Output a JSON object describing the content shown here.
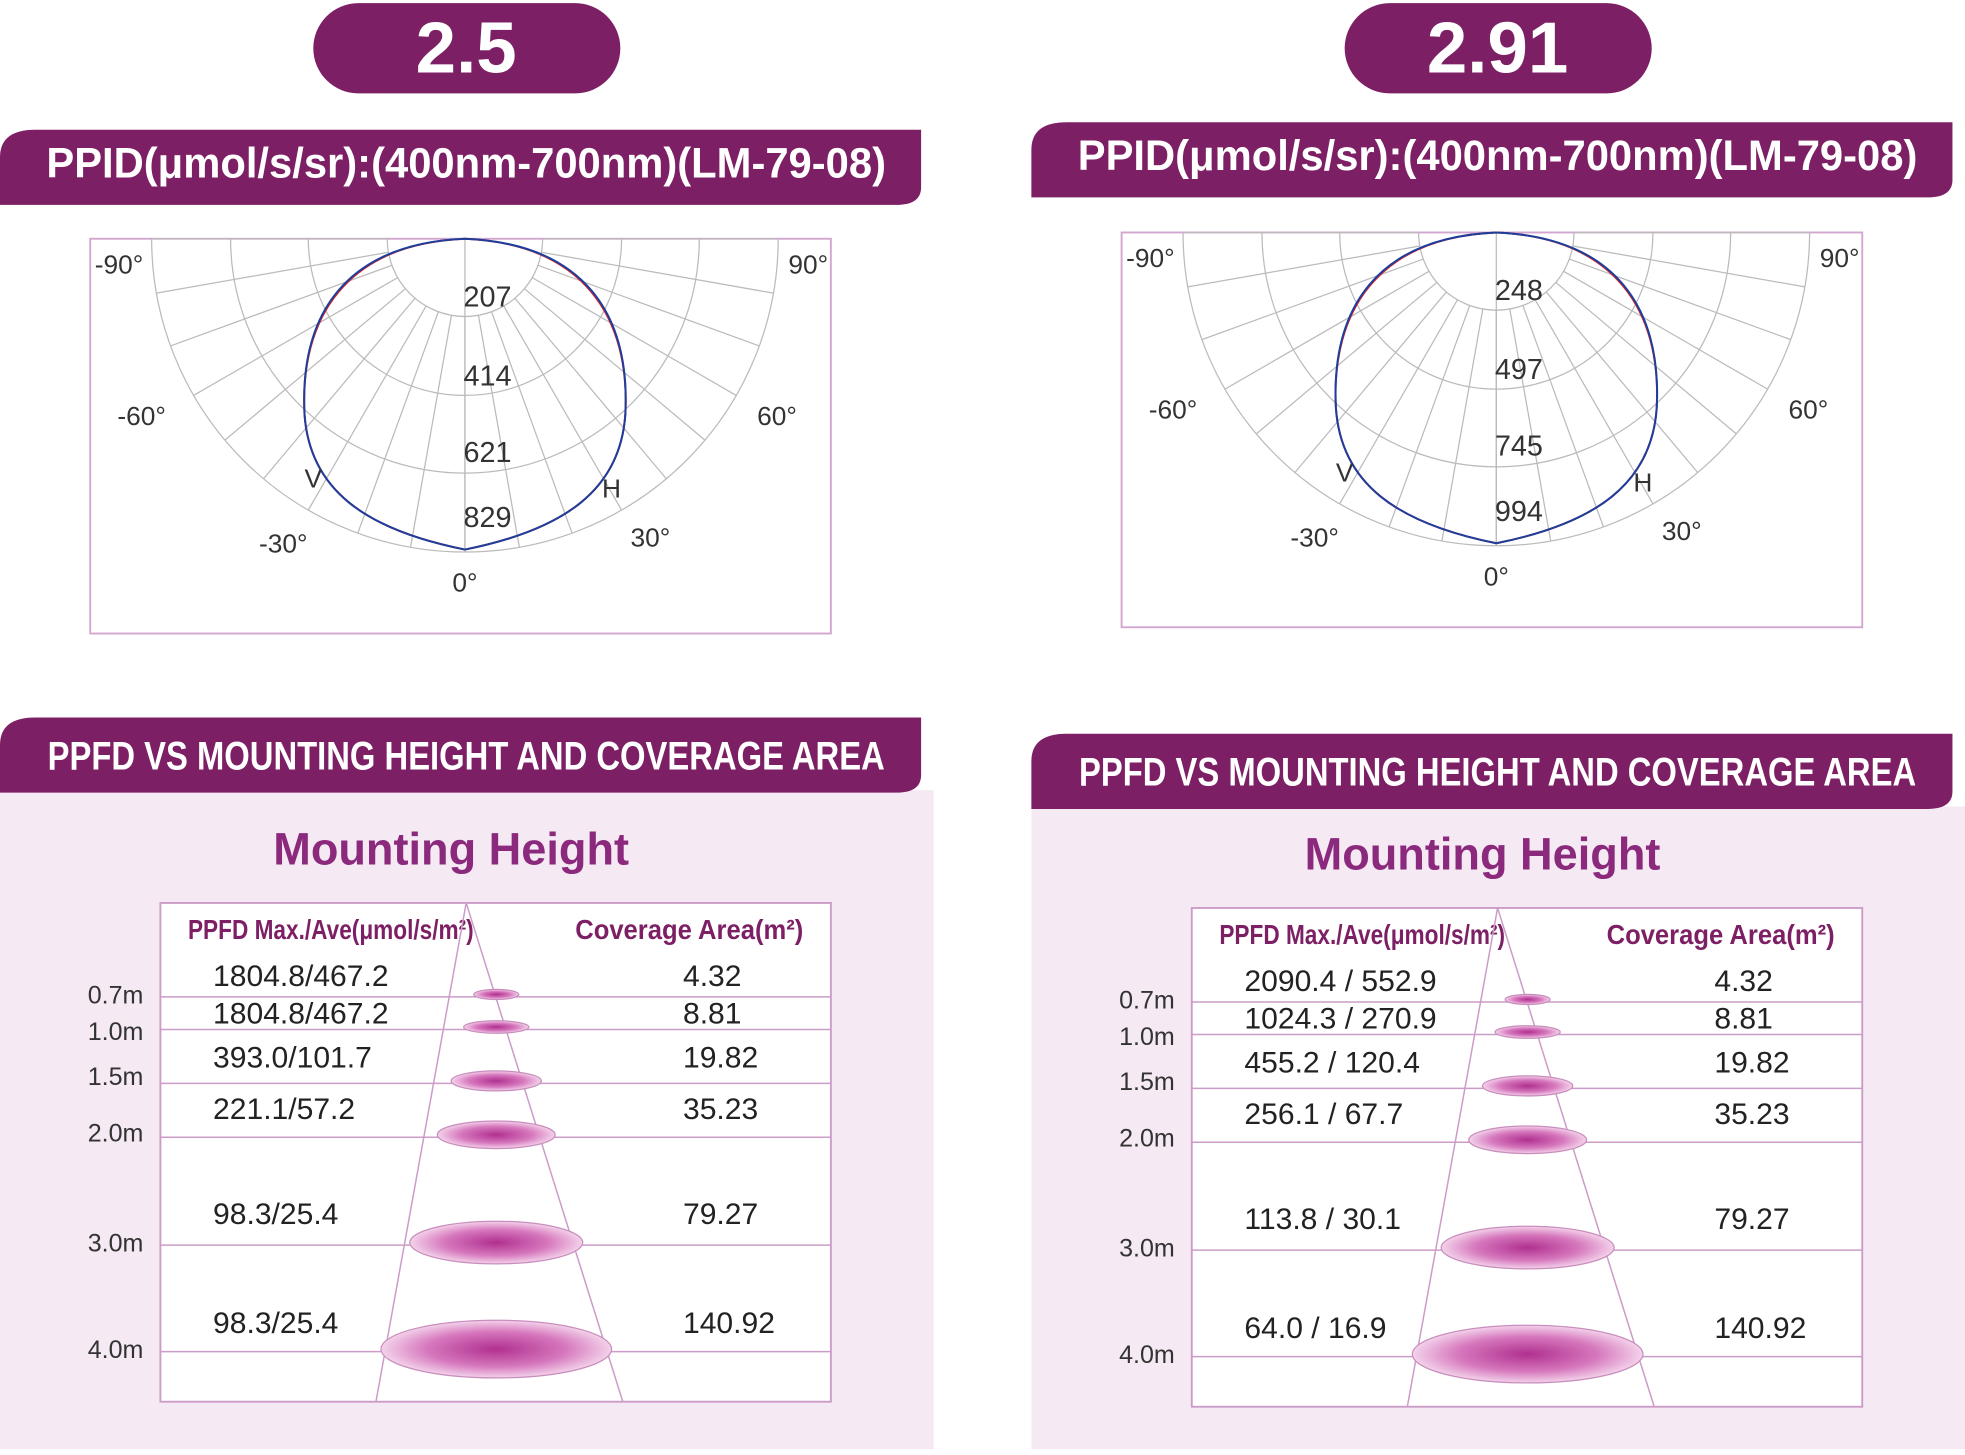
{
  "panels": [
    {
      "badge": "2.5",
      "ppid_title": "PPID(μmol/s/sr):(400nm-700nm)(LM-79-08)",
      "polar": {
        "angle_labels": [
          "-90°",
          "90°",
          "-60°",
          "60°",
          "-30°",
          "30°",
          "0°"
        ],
        "radial_labels": [
          "207",
          "414",
          "621",
          "829"
        ],
        "curve_labels": [
          "V",
          "H"
        ]
      },
      "ppfd_title": "PPFD VS MOUNTING HEIGHT AND COVERAGE AREA",
      "mounting_title": "Mounting Height",
      "table": {
        "header": [
          "PPFD Max./Ave(μmol/s/m²)",
          "Coverage Area(m²)"
        ],
        "rows": [
          {
            "height": "0.7m",
            "ppfd": "1804.8/467.2",
            "area": "4.32"
          },
          {
            "height": "1.0m",
            "ppfd": "1804.8/467.2",
            "area": "8.81"
          },
          {
            "height": "1.5m",
            "ppfd": "393.0/101.7",
            "area": "19.82"
          },
          {
            "height": "2.0m",
            "ppfd": "221.1/57.2",
            "area": "35.23"
          },
          {
            "height": "3.0m",
            "ppfd": "98.3/25.4",
            "area": "79.27"
          },
          {
            "height": "4.0m",
            "ppfd": "98.3/25.4",
            "area": "140.92"
          }
        ]
      }
    },
    {
      "badge": "2.91",
      "ppid_title": "PPID(μmol/s/sr):(400nm-700nm)(LM-79-08)",
      "polar": {
        "angle_labels": [
          "-90°",
          "90°",
          "-60°",
          "60°",
          "-30°",
          "30°",
          "0°"
        ],
        "radial_labels": [
          "248",
          "497",
          "745",
          "994"
        ],
        "curve_labels": [
          "V",
          "H"
        ]
      },
      "ppfd_title": "PPFD VS MOUNTING HEIGHT AND COVERAGE AREA",
      "mounting_title": "Mounting Height",
      "table": {
        "header": [
          "PPFD Max./Ave(μmol/s/m²)",
          "Coverage Area(m²)"
        ],
        "rows": [
          {
            "height": "0.7m",
            "ppfd": "2090.4 / 552.9",
            "area": "4.32"
          },
          {
            "height": "1.0m",
            "ppfd": "1024.3 / 270.9",
            "area": "8.81"
          },
          {
            "height": "1.5m",
            "ppfd": "455.2 / 120.4",
            "area": "19.82"
          },
          {
            "height": "2.0m",
            "ppfd": "256.1 / 67.7",
            "area": "35.23"
          },
          {
            "height": "3.0m",
            "ppfd": "113.8 / 30.1",
            "area": "79.27"
          },
          {
            "height": "4.0m",
            "ppfd": "64.0 / 16.9",
            "area": "140.92"
          }
        ]
      }
    }
  ]
}
